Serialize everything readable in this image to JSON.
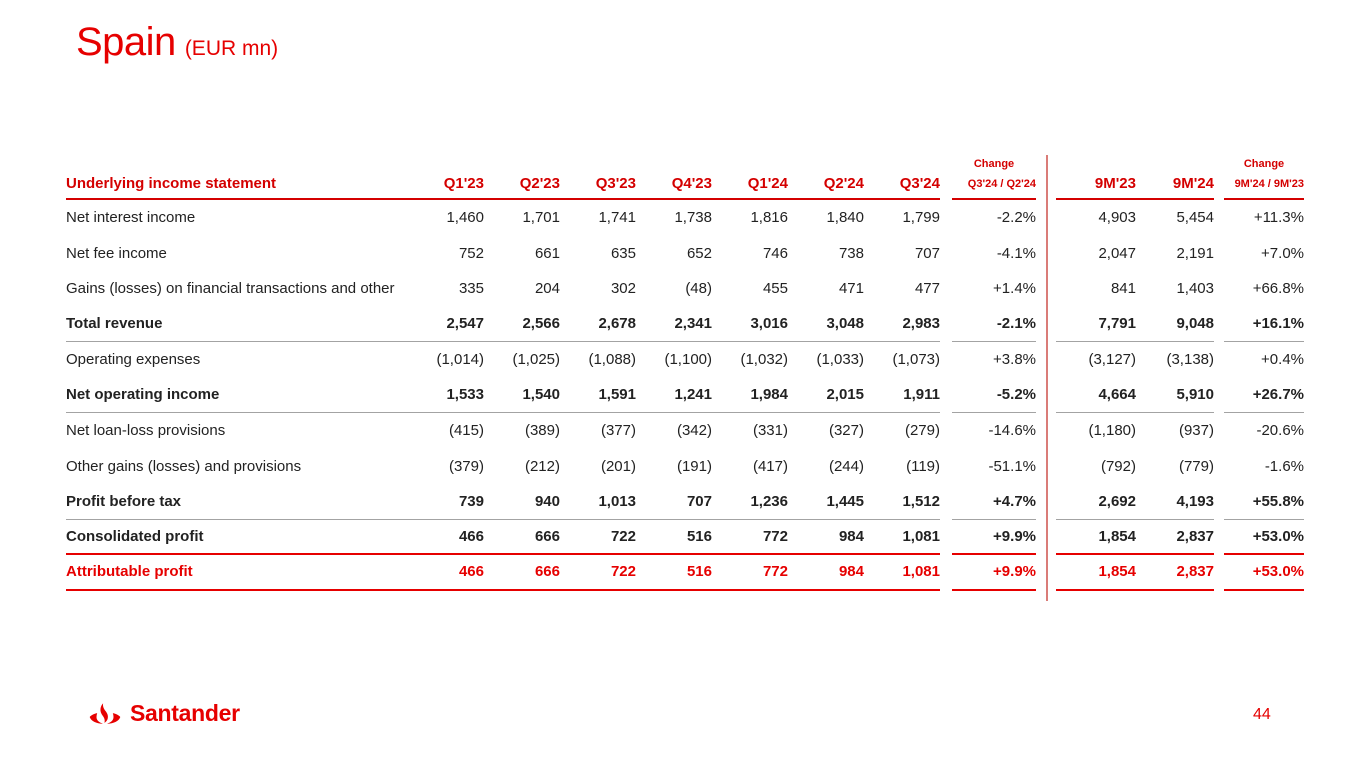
{
  "slide": {
    "title": "Spain",
    "title_suffix": "(EUR mn)",
    "page_number": "44",
    "logo_text": "Santander"
  },
  "colors": {
    "brand_red": "#e60000",
    "header_red": "#d40000",
    "body_text": "#222222",
    "gray_rule": "#a3a3a3",
    "divider_red": "rgba(205,80,75,0.75)"
  },
  "table": {
    "header": {
      "label": "Underlying income statement",
      "quarters": [
        "Q1'23",
        "Q2'23",
        "Q3'23",
        "Q4'23",
        "Q1'24",
        "Q2'24",
        "Q3'24"
      ],
      "change_q_title": "Change",
      "change_q_sub": "Q3'24 / Q2'24",
      "nine_months": [
        "9M'23",
        "9M'24"
      ],
      "change_9m_title": "Change",
      "change_9m_sub": "9M'24 / 9M'23"
    },
    "rows": [
      {
        "label": "Net interest income",
        "values": [
          "1,460",
          "1,701",
          "1,741",
          "1,738",
          "1,816",
          "1,840",
          "1,799"
        ],
        "change_q": "-2.2%",
        "nine": [
          "4,903",
          "5,454"
        ],
        "change_9m": "+11.3%",
        "bold": false,
        "red": false,
        "rule": "none"
      },
      {
        "label": "Net fee income",
        "values": [
          "752",
          "661",
          "635",
          "652",
          "746",
          "738",
          "707"
        ],
        "change_q": "-4.1%",
        "nine": [
          "2,047",
          "2,191"
        ],
        "change_9m": "+7.0%",
        "bold": false,
        "red": false,
        "rule": "none"
      },
      {
        "label": "Gains (losses) on financial transactions and other",
        "values": [
          "335",
          "204",
          "302",
          "(48)",
          "455",
          "471",
          "477"
        ],
        "change_q": "+1.4%",
        "nine": [
          "841",
          "1,403"
        ],
        "change_9m": "+66.8%",
        "bold": false,
        "red": false,
        "rule": "none"
      },
      {
        "label": "Total revenue",
        "values": [
          "2,547",
          "2,566",
          "2,678",
          "2,341",
          "3,016",
          "3,048",
          "2,983"
        ],
        "change_q": "-2.1%",
        "nine": [
          "7,791",
          "9,048"
        ],
        "change_9m": "+16.1%",
        "bold": true,
        "red": false,
        "rule": "gray"
      },
      {
        "label": "Operating expenses",
        "values": [
          "(1,014)",
          "(1,025)",
          "(1,088)",
          "(1,100)",
          "(1,032)",
          "(1,033)",
          "(1,073)"
        ],
        "change_q": "+3.8%",
        "nine": [
          "(3,127)",
          "(3,138)"
        ],
        "change_9m": "+0.4%",
        "bold": false,
        "red": false,
        "rule": "none"
      },
      {
        "label": "Net operating income",
        "values": [
          "1,533",
          "1,540",
          "1,591",
          "1,241",
          "1,984",
          "2,015",
          "1,911"
        ],
        "change_q": "-5.2%",
        "nine": [
          "4,664",
          "5,910"
        ],
        "change_9m": "+26.7%",
        "bold": true,
        "red": false,
        "rule": "gray"
      },
      {
        "label": "Net loan-loss provisions",
        "values": [
          "(415)",
          "(389)",
          "(377)",
          "(342)",
          "(331)",
          "(327)",
          "(279)"
        ],
        "change_q": "-14.6%",
        "nine": [
          "(1,180)",
          "(937)"
        ],
        "change_9m": "-20.6%",
        "bold": false,
        "red": false,
        "rule": "none"
      },
      {
        "label": "Other gains (losses) and provisions",
        "values": [
          "(379)",
          "(212)",
          "(201)",
          "(191)",
          "(417)",
          "(244)",
          "(119)"
        ],
        "change_q": "-51.1%",
        "nine": [
          "(792)",
          "(779)"
        ],
        "change_9m": "-1.6%",
        "bold": false,
        "red": false,
        "rule": "none"
      },
      {
        "label": "Profit before tax",
        "values": [
          "739",
          "940",
          "1,013",
          "707",
          "1,236",
          "1,445",
          "1,512"
        ],
        "change_q": "+4.7%",
        "nine": [
          "2,692",
          "4,193"
        ],
        "change_9m": "+55.8%",
        "bold": true,
        "red": false,
        "rule": "gray"
      },
      {
        "label": "Consolidated profit",
        "values": [
          "466",
          "666",
          "722",
          "516",
          "772",
          "984",
          "1,081"
        ],
        "change_q": "+9.9%",
        "nine": [
          "1,854",
          "2,837"
        ],
        "change_9m": "+53.0%",
        "bold": true,
        "red": false,
        "rule": "red"
      },
      {
        "label": "Attributable profit",
        "values": [
          "466",
          "666",
          "722",
          "516",
          "772",
          "984",
          "1,081"
        ],
        "change_q": "+9.9%",
        "nine": [
          "1,854",
          "2,837"
        ],
        "change_9m": "+53.0%",
        "bold": true,
        "red": true,
        "rule": "red"
      }
    ]
  }
}
